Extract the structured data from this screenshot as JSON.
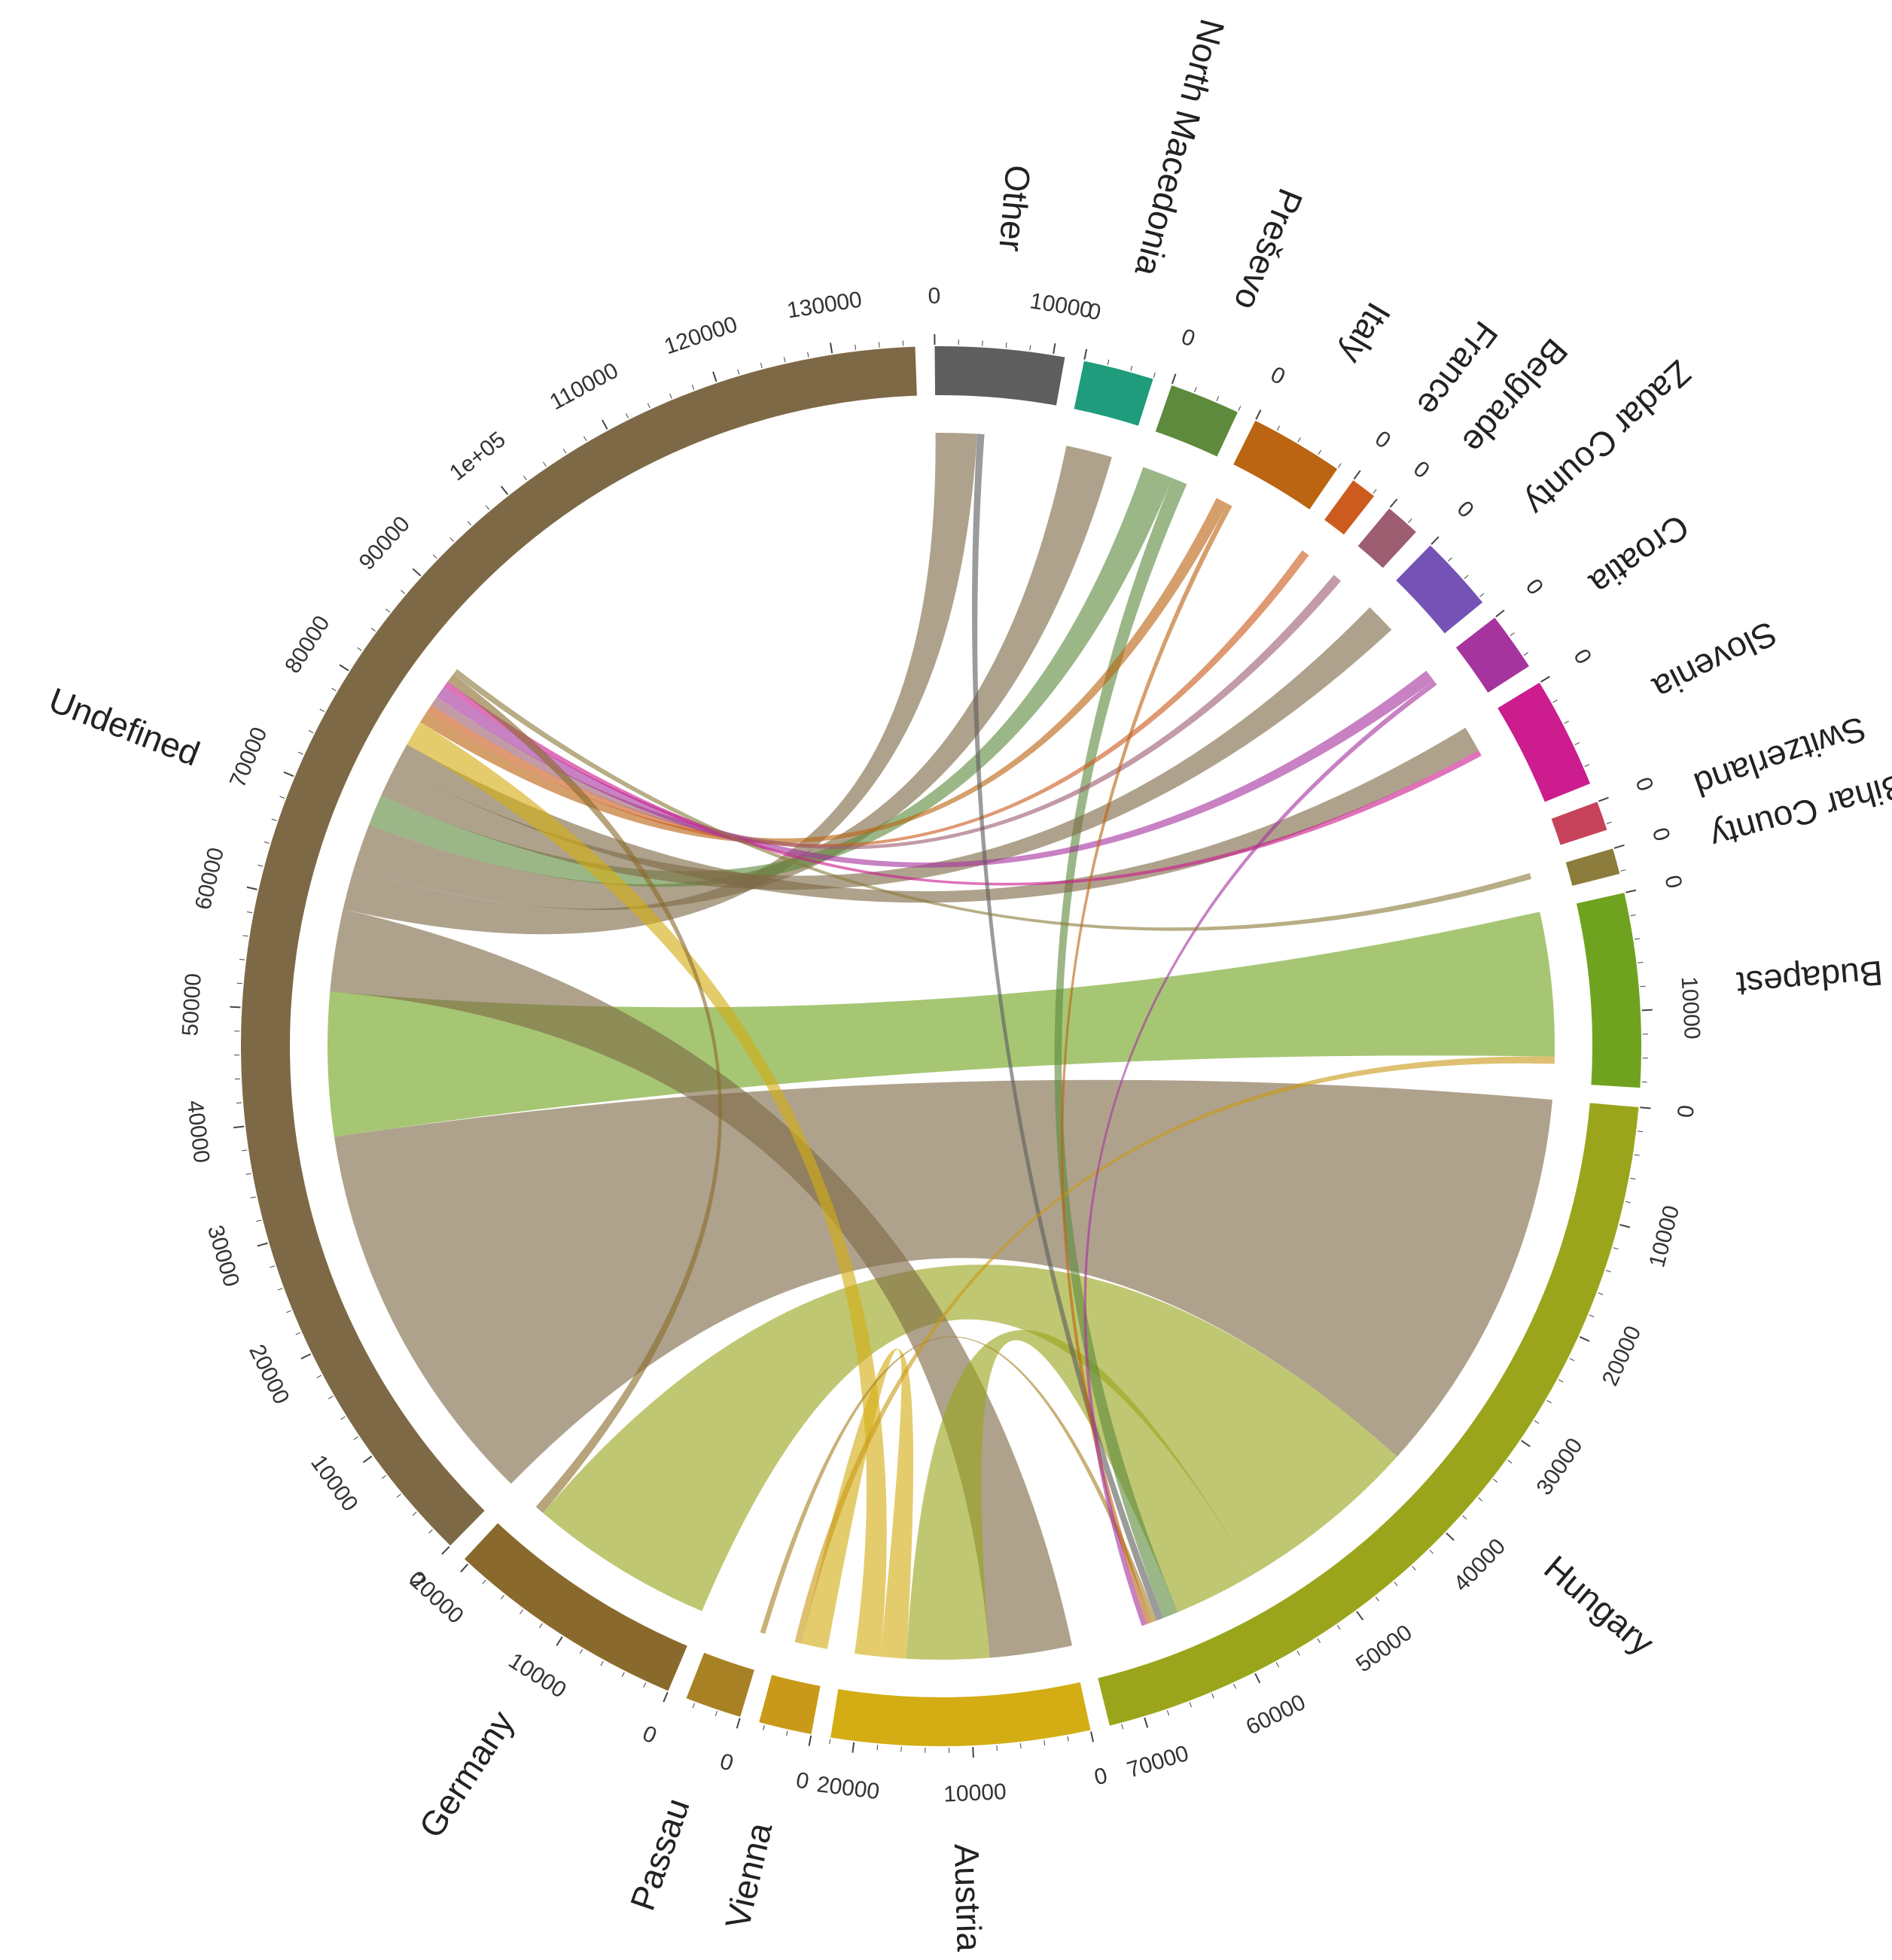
{
  "chart_data": {
    "type": "chord",
    "title": "",
    "sectors": [
      {
        "name": "Hungary",
        "total": 73000,
        "color": "#9aa51c",
        "ticks": [
          0,
          10000,
          20000,
          30000,
          40000,
          50000,
          60000,
          70000
        ]
      },
      {
        "name": "Austria",
        "total": 22000,
        "color": "#d3ad13",
        "ticks": [
          0,
          10000,
          20000
        ]
      },
      {
        "name": "Vienna",
        "total": 4500,
        "color": "#c99a19",
        "ticks": [
          0
        ]
      },
      {
        "name": "Passau",
        "total": 4800,
        "color": "#a88124",
        "ticks": [
          0
        ]
      },
      {
        "name": "Germany",
        "total": 20500,
        "color": "#8a6a2c",
        "ticks": [
          0,
          10000,
          20000
        ]
      },
      {
        "name": "Undefined",
        "total": 137000,
        "color": "#7e6946",
        "ticks": [
          0,
          10000,
          20000,
          30000,
          40000,
          50000,
          60000,
          70000,
          80000,
          90000,
          "1e+05",
          110000,
          120000,
          130000
        ]
      },
      {
        "name": "Other",
        "total": 11000,
        "color": "#5e5e5e",
        "ticks": [
          0,
          10000
        ]
      },
      {
        "name": "North Macedonia",
        "total": 6000,
        "color": "#1e9c7c",
        "ticks": [
          0
        ]
      },
      {
        "name": "Preševo",
        "total": 6000,
        "color": "#5d8a3d",
        "ticks": [
          0
        ]
      },
      {
        "name": "Italy",
        "total": 8000,
        "color": "#bb6411",
        "ticks": [
          0
        ]
      },
      {
        "name": "France",
        "total": 2200,
        "color": "#cc5b1d",
        "ticks": [
          0
        ]
      },
      {
        "name": "Belgrade",
        "total": 3000,
        "color": "#9c5d70",
        "ticks": [
          0
        ]
      },
      {
        "name": "Zadar County",
        "total": 6500,
        "color": "#7552b6",
        "ticks": [
          0
        ]
      },
      {
        "name": "Croatia",
        "total": 5000,
        "color": "#a6349e",
        "ticks": [
          0
        ]
      },
      {
        "name": "Slovenia",
        "total": 9500,
        "color": "#cc1c8e",
        "ticks": [
          0
        ]
      },
      {
        "name": "Switzerland",
        "total": 2500,
        "color": "#c6435b",
        "ticks": [
          0
        ]
      },
      {
        "name": "Hajdú-Bihar County",
        "total": 2200,
        "color": "#8c7d3c",
        "ticks": [
          0
        ]
      },
      {
        "name": "Budapest",
        "total": 16500,
        "color": "#6fa31f",
        "ticks": [
          0,
          10000
        ]
      }
    ],
    "flows": [
      {
        "from": "Undefined",
        "to": "Hungary",
        "value": 38000
      },
      {
        "from": "Hungary",
        "to": "Germany",
        "value": 18000
      },
      {
        "from": "Budapest",
        "to": "Undefined",
        "value": 14000
      },
      {
        "from": "Undefined",
        "to": "Austria",
        "value": 8000
      },
      {
        "from": "Hungary",
        "to": "Austria",
        "value": 8000
      },
      {
        "from": "Undefined",
        "to": "Other",
        "value": 4000
      },
      {
        "from": "Undefined",
        "to": "North Macedonia",
        "value": 4500
      },
      {
        "from": "Preševo",
        "to": "Undefined",
        "value": 3000
      },
      {
        "from": "Preševo",
        "to": "Hungary",
        "value": 1500
      },
      {
        "from": "Undefined",
        "to": "Zadar County",
        "value": 3000
      },
      {
        "from": "Undefined",
        "to": "Slovenia",
        "value": 2500
      },
      {
        "from": "Austria",
        "to": "Vienna",
        "value": 2500
      },
      {
        "from": "Austria",
        "to": "Undefined",
        "value": 2500
      },
      {
        "from": "Italy",
        "to": "Undefined",
        "value": 1200
      },
      {
        "from": "France",
        "to": "Undefined",
        "value": 800
      },
      {
        "from": "Belgrade",
        "to": "Undefined",
        "value": 900
      },
      {
        "from": "Croatia",
        "to": "Undefined",
        "value": 1200
      },
      {
        "from": "Slovenia",
        "to": "Undefined",
        "value": 600
      },
      {
        "from": "Other",
        "to": "Hungary",
        "value": 700
      },
      {
        "from": "Vienna",
        "to": "Budapest",
        "value": 700
      },
      {
        "from": "Passau",
        "to": "Hungary",
        "value": 500
      },
      {
        "from": "Germany",
        "to": "Undefined",
        "value": 900
      },
      {
        "from": "Italy",
        "to": "Hungary",
        "value": 500
      },
      {
        "from": "Croatia",
        "to": "Hungary",
        "value": 500
      },
      {
        "from": "Hajdú-Bihar County",
        "to": "Undefined",
        "value": 600
      }
    ]
  }
}
